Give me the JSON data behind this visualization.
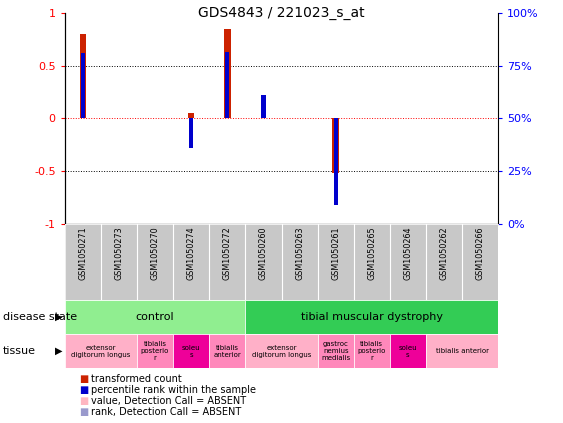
{
  "title": "GDS4843 / 221023_s_at",
  "samples": [
    "GSM1050271",
    "GSM1050273",
    "GSM1050270",
    "GSM1050274",
    "GSM1050272",
    "GSM1050260",
    "GSM1050263",
    "GSM1050261",
    "GSM1050265",
    "GSM1050264",
    "GSM1050262",
    "GSM1050266"
  ],
  "transformed_count": [
    0.8,
    0.0,
    0.0,
    0.05,
    0.85,
    0.0,
    0.0,
    -0.52,
    0.0,
    0.0,
    0.0,
    0.0
  ],
  "percentile_rank": [
    0.62,
    0.0,
    0.0,
    -0.28,
    0.63,
    0.22,
    0.0,
    -0.82,
    0.0,
    0.0,
    0.0,
    0.0
  ],
  "disease_groups": [
    {
      "label": "control",
      "start": 0,
      "end": 5,
      "color": "#90EE90"
    },
    {
      "label": "tibial muscular dystrophy",
      "start": 5,
      "end": 12,
      "color": "#33CC55"
    }
  ],
  "tissue_defs": [
    {
      "start": 0,
      "end": 2,
      "color": "#FFB0C8",
      "label": "extensor\ndigitorum longus"
    },
    {
      "start": 2,
      "end": 3,
      "color": "#FF88BB",
      "label": "tibialis\nposterio\nr"
    },
    {
      "start": 3,
      "end": 4,
      "color": "#EE0099",
      "label": "soleu\ns"
    },
    {
      "start": 4,
      "end": 5,
      "color": "#FF88BB",
      "label": "tibialis\nanterior"
    },
    {
      "start": 5,
      "end": 7,
      "color": "#FFB0C8",
      "label": "extensor\ndigitorum longus"
    },
    {
      "start": 7,
      "end": 8,
      "color": "#FF88BB",
      "label": "gastroc\nnemius\nmedialis"
    },
    {
      "start": 8,
      "end": 9,
      "color": "#FF88BB",
      "label": "tibialis\nposterio\nr"
    },
    {
      "start": 9,
      "end": 10,
      "color": "#EE0099",
      "label": "soleu\ns"
    },
    {
      "start": 10,
      "end": 12,
      "color": "#FFB0C8",
      "label": "tibialis anterior"
    }
  ],
  "bar_color": "#CC2200",
  "rank_color": "#0000CC",
  "absent_bar_color": "#FFB6C1",
  "absent_rank_color": "#9999CC",
  "legend_items": [
    {
      "color": "#CC2200",
      "label": "transformed count"
    },
    {
      "color": "#0000CC",
      "label": "percentile rank within the sample"
    },
    {
      "color": "#FFB6C1",
      "label": "value, Detection Call = ABSENT"
    },
    {
      "color": "#9999CC",
      "label": "rank, Detection Call = ABSENT"
    }
  ]
}
